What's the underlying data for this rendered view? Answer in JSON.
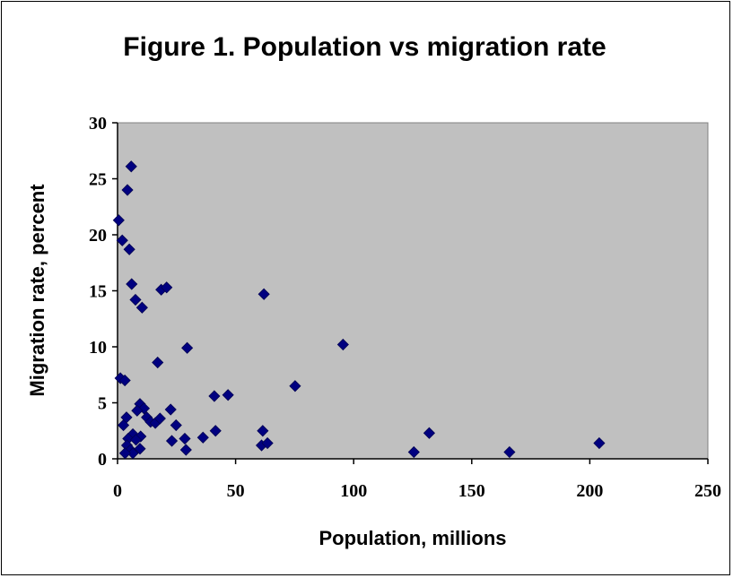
{
  "chart_data": {
    "type": "scatter",
    "title": "Figure 1. Population vs migration rate",
    "xlabel": "Population, millions",
    "ylabel": "Migration rate, percent",
    "xlim": [
      0,
      250
    ],
    "ylim": [
      0,
      30
    ],
    "xticks": [
      "0",
      "50",
      "100",
      "150",
      "200",
      "250"
    ],
    "yticks": [
      "0",
      "5",
      "10",
      "15",
      "20",
      "25",
      "30"
    ],
    "grid": false,
    "legend": "none",
    "plot_background": "#c0c0c0",
    "marker_color": "#000080",
    "marker": "diamond",
    "series": [
      {
        "points": [
          [
            0.5,
            21.3
          ],
          [
            2.0,
            19.5
          ],
          [
            4.2,
            24.0
          ],
          [
            5.8,
            26.1
          ],
          [
            5.0,
            18.7
          ],
          [
            6.0,
            15.6
          ],
          [
            7.6,
            14.2
          ],
          [
            10.4,
            13.5
          ],
          [
            18.5,
            15.1
          ],
          [
            20.8,
            15.3
          ],
          [
            62.0,
            14.7
          ],
          [
            95.5,
            10.2
          ],
          [
            29.5,
            9.9
          ],
          [
            17.0,
            8.6
          ],
          [
            75.2,
            6.5
          ],
          [
            46.8,
            5.7
          ],
          [
            41.0,
            5.6
          ],
          [
            1.2,
            7.2
          ],
          [
            3.1,
            7.0
          ],
          [
            22.5,
            4.4
          ],
          [
            9.5,
            4.9
          ],
          [
            11.2,
            4.5
          ],
          [
            8.3,
            4.3
          ],
          [
            12.4,
            3.7
          ],
          [
            14.0,
            3.3
          ],
          [
            16.0,
            3.2
          ],
          [
            18.0,
            3.6
          ],
          [
            24.8,
            3.0
          ],
          [
            3.8,
            3.7
          ],
          [
            2.5,
            3.0
          ],
          [
            6.5,
            2.2
          ],
          [
            9.8,
            2.0
          ],
          [
            4.5,
            1.8
          ],
          [
            7.8,
            1.7
          ],
          [
            4.0,
            1.2
          ],
          [
            5.5,
            0.8
          ],
          [
            9.5,
            0.9
          ],
          [
            6.5,
            0.5
          ],
          [
            3.2,
            0.5
          ],
          [
            23.0,
            1.6
          ],
          [
            28.5,
            1.8
          ],
          [
            29.0,
            0.8
          ],
          [
            36.2,
            1.9
          ],
          [
            41.5,
            2.5
          ],
          [
            61.5,
            2.5
          ],
          [
            61.0,
            1.2
          ],
          [
            63.5,
            1.4
          ],
          [
            125.5,
            0.6
          ],
          [
            132.0,
            2.3
          ],
          [
            166.0,
            0.6
          ],
          [
            204.0,
            1.4
          ]
        ]
      }
    ]
  }
}
